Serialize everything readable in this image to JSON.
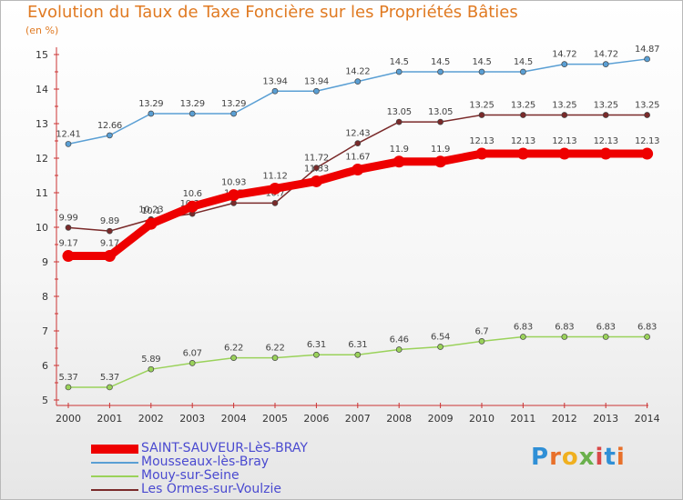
{
  "title": "Evolution du Taux de Taxe Foncière sur les Propriétés Bâties",
  "subtitle": "(en %)",
  "logo": "Proxiti",
  "chart_data": {
    "type": "line",
    "x": [
      "2000",
      "2001",
      "2002",
      "2003",
      "2004",
      "2005",
      "2006",
      "2007",
      "2008",
      "2009",
      "2010",
      "2011",
      "2012",
      "2013",
      "2014"
    ],
    "ylim": [
      5,
      15
    ],
    "yticks": [
      5,
      6,
      7,
      8,
      9,
      10,
      11,
      12,
      13,
      14,
      15
    ],
    "grid": false,
    "legend_position": "bottom-left",
    "series": [
      {
        "name": "SAINT-SAUVEUR-LèS-BRAY",
        "color": "#ee0000",
        "values": [
          9.17,
          9.17,
          10.1,
          10.6,
          10.93,
          11.12,
          11.33,
          11.67,
          11.9,
          11.9,
          12.13,
          12.13,
          12.13,
          12.13,
          12.13
        ],
        "labels": [
          "9.17",
          "9.17",
          "10.1",
          "10.6",
          "10.93",
          "11.12",
          "11.33",
          "11.67",
          "11.9",
          "11.9",
          "12.13",
          "12.13",
          "12.13",
          "12.13",
          "12.13"
        ]
      },
      {
        "name": "Mousseaux-lès-Bray",
        "color": "#5a9fd4",
        "values": [
          12.41,
          12.66,
          13.29,
          13.29,
          13.29,
          13.94,
          13.94,
          14.22,
          14.5,
          14.5,
          14.5,
          14.5,
          14.72,
          14.72,
          14.87
        ],
        "labels": [
          "12.41",
          "12.66",
          "13.29",
          "13.29",
          "13.29",
          "13.94",
          "13.94",
          "14.22",
          "14.5",
          "14.5",
          "14.5",
          "14.5",
          "14.72",
          "14.72",
          "14.87"
        ]
      },
      {
        "name": "Mouy-sur-Seine",
        "color": "#9ad25a",
        "values": [
          5.37,
          5.37,
          5.89,
          6.07,
          6.22,
          6.22,
          6.31,
          6.31,
          6.46,
          6.54,
          6.7,
          6.83,
          6.83,
          6.83,
          6.83
        ],
        "labels": [
          "5.37",
          "5.37",
          "5.89",
          "6.07",
          "6.22",
          "6.22",
          "6.31",
          "6.31",
          "6.46",
          "6.54",
          "6.7",
          "6.83",
          "6.83",
          "6.83",
          "6.83"
        ]
      },
      {
        "name": "Les Ormes-sur-Voulzie",
        "color": "#7a2a2a",
        "values": [
          9.99,
          9.89,
          10.23,
          10.39,
          10.7,
          10.7,
          11.72,
          12.43,
          13.05,
          13.05,
          13.25,
          13.25,
          13.25,
          13.25,
          13.25
        ],
        "labels": [
          "9.99",
          "9.89",
          "10.23",
          "10.39",
          "10.7",
          "10.7",
          "11.72",
          "12.43",
          "13.05",
          "13.05",
          "13.25",
          "13.25",
          "13.25",
          "13.25",
          "13.25"
        ]
      }
    ]
  }
}
